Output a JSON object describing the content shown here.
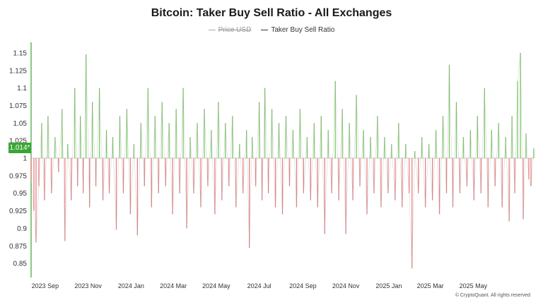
{
  "title": "Bitcoin: Taker Buy Sell Ratio - All Exchanges",
  "legend": [
    {
      "label": "Price USD",
      "hidden": true
    },
    {
      "label": "Taker Buy Sell Ratio",
      "hidden": false
    }
  ],
  "credit": "© CryptoQuant. All rights reserved",
  "current_value_label": "1.014*",
  "colors": {
    "above": "#6cc253",
    "below": "#e57373",
    "accent": "#3aa635",
    "baseline": "#cccccc"
  },
  "chart_data": {
    "type": "area",
    "title": "Bitcoin: Taker Buy Sell Ratio - All Exchanges",
    "baseline": 1.0,
    "ylim": [
      0.83,
      1.165
    ],
    "yticks": [
      1.15,
      1.125,
      1.1,
      1.075,
      1.05,
      1.025,
      1,
      0.975,
      0.95,
      0.925,
      0.9,
      0.875,
      0.85
    ],
    "ytick_labels": [
      "1.15",
      "1.125",
      "1.1",
      "1.075",
      "1.05",
      "1.025",
      "1",
      "0.975",
      "0.95",
      "0.925",
      "0.9",
      "0.875",
      "0.85"
    ],
    "x_range": [
      "2023-08-12",
      "2025-07-26"
    ],
    "xticks": [
      {
        "label": "2023 Sep",
        "date": "2023-09-01"
      },
      {
        "label": "2023 Nov",
        "date": "2023-11-01"
      },
      {
        "label": "2024 Jan",
        "date": "2024-01-01"
      },
      {
        "label": "2024 Mar",
        "date": "2024-03-01"
      },
      {
        "label": "2024 May",
        "date": "2024-05-01"
      },
      {
        "label": "2024 Jul",
        "date": "2024-07-01"
      },
      {
        "label": "2024 Sep",
        "date": "2024-09-01"
      },
      {
        "label": "2024 Nov",
        "date": "2024-11-01"
      },
      {
        "label": "2025 Jan",
        "date": "2025-01-01"
      },
      {
        "label": "2025 Mar",
        "date": "2025-03-01"
      },
      {
        "label": "2025 May",
        "date": "2025-05-01"
      }
    ],
    "series": [
      {
        "name": "Taker Buy Sell Ratio",
        "points": [
          [
            "2023-08-12",
            0.97
          ],
          [
            "2023-08-16",
            0.925
          ],
          [
            "2023-08-19",
            0.88
          ],
          [
            "2023-08-23",
            0.96
          ],
          [
            "2023-08-27",
            1.05
          ],
          [
            "2023-08-31",
            0.94
          ],
          [
            "2023-09-05",
            1.06
          ],
          [
            "2023-09-10",
            0.95
          ],
          [
            "2023-09-15",
            1.03
          ],
          [
            "2023-09-20",
            0.98
          ],
          [
            "2023-09-25",
            1.07
          ],
          [
            "2023-09-29",
            0.882
          ],
          [
            "2023-10-03",
            1.02
          ],
          [
            "2023-10-08",
            0.94
          ],
          [
            "2023-10-13",
            1.1
          ],
          [
            "2023-10-17",
            0.96
          ],
          [
            "2023-10-21",
            1.06
          ],
          [
            "2023-10-25",
            0.95
          ],
          [
            "2023-10-29",
            1.148
          ],
          [
            "2023-11-03",
            0.93
          ],
          [
            "2023-11-07",
            1.08
          ],
          [
            "2023-11-12",
            0.96
          ],
          [
            "2023-11-17",
            1.1
          ],
          [
            "2023-11-22",
            0.94
          ],
          [
            "2023-11-27",
            1.04
          ],
          [
            "2023-12-01",
            0.95
          ],
          [
            "2023-12-06",
            1.03
          ],
          [
            "2023-12-11",
            0.898
          ],
          [
            "2023-12-16",
            1.06
          ],
          [
            "2023-12-21",
            0.95
          ],
          [
            "2023-12-26",
            1.07
          ],
          [
            "2023-12-31",
            0.92
          ],
          [
            "2024-01-05",
            1.02
          ],
          [
            "2024-01-10",
            0.89
          ],
          [
            "2024-01-15",
            1.05
          ],
          [
            "2024-01-20",
            0.96
          ],
          [
            "2024-01-25",
            1.1
          ],
          [
            "2024-01-30",
            0.93
          ],
          [
            "2024-02-04",
            1.06
          ],
          [
            "2024-02-09",
            0.95
          ],
          [
            "2024-02-14",
            1.08
          ],
          [
            "2024-02-19",
            0.96
          ],
          [
            "2024-02-24",
            1.05
          ],
          [
            "2024-02-29",
            0.92
          ],
          [
            "2024-03-05",
            1.07
          ],
          [
            "2024-03-10",
            0.95
          ],
          [
            "2024-03-15",
            1.1
          ],
          [
            "2024-03-20",
            0.9
          ],
          [
            "2024-03-25",
            1.03
          ],
          [
            "2024-03-30",
            0.95
          ],
          [
            "2024-04-04",
            1.05
          ],
          [
            "2024-04-09",
            0.93
          ],
          [
            "2024-04-14",
            1.07
          ],
          [
            "2024-04-19",
            0.96
          ],
          [
            "2024-04-24",
            1.04
          ],
          [
            "2024-04-29",
            0.92
          ],
          [
            "2024-05-04",
            1.08
          ],
          [
            "2024-05-09",
            0.94
          ],
          [
            "2024-05-14",
            1.05
          ],
          [
            "2024-05-19",
            0.96
          ],
          [
            "2024-05-24",
            1.06
          ],
          [
            "2024-05-29",
            0.93
          ],
          [
            "2024-06-03",
            1.02
          ],
          [
            "2024-06-08",
            0.95
          ],
          [
            "2024-06-13",
            1.04
          ],
          [
            "2024-06-17",
            0.872
          ],
          [
            "2024-06-21",
            1.03
          ],
          [
            "2024-06-26",
            0.96
          ],
          [
            "2024-07-01",
            1.08
          ],
          [
            "2024-07-05",
            0.94
          ],
          [
            "2024-07-09",
            1.1
          ],
          [
            "2024-07-14",
            0.95
          ],
          [
            "2024-07-19",
            1.07
          ],
          [
            "2024-07-24",
            0.93
          ],
          [
            "2024-07-29",
            1.05
          ],
          [
            "2024-08-03",
            0.92
          ],
          [
            "2024-08-08",
            1.06
          ],
          [
            "2024-08-13",
            0.96
          ],
          [
            "2024-08-18",
            1.04
          ],
          [
            "2024-08-23",
            0.93
          ],
          [
            "2024-08-28",
            1.07
          ],
          [
            "2024-09-02",
            0.95
          ],
          [
            "2024-09-07",
            1.03
          ],
          [
            "2024-09-12",
            0.94
          ],
          [
            "2024-09-17",
            1.05
          ],
          [
            "2024-09-22",
            0.93
          ],
          [
            "2024-09-27",
            1.06
          ],
          [
            "2024-10-02",
            0.892
          ],
          [
            "2024-10-07",
            1.04
          ],
          [
            "2024-10-12",
            0.95
          ],
          [
            "2024-10-17",
            1.11
          ],
          [
            "2024-10-22",
            0.94
          ],
          [
            "2024-10-27",
            1.07
          ],
          [
            "2024-11-01",
            0.892
          ],
          [
            "2024-11-06",
            1.05
          ],
          [
            "2024-11-11",
            0.94
          ],
          [
            "2024-11-16",
            1.09
          ],
          [
            "2024-11-21",
            0.96
          ],
          [
            "2024-11-26",
            1.04
          ],
          [
            "2024-12-01",
            0.92
          ],
          [
            "2024-12-06",
            1.03
          ],
          [
            "2024-12-11",
            0.95
          ],
          [
            "2024-12-16",
            1.06
          ],
          [
            "2024-12-21",
            0.93
          ],
          [
            "2024-12-26",
            1.03
          ],
          [
            "2024-12-31",
            0.95
          ],
          [
            "2025-01-05",
            1.02
          ],
          [
            "2025-01-10",
            0.94
          ],
          [
            "2025-01-15",
            1.05
          ],
          [
            "2025-01-20",
            0.93
          ],
          [
            "2025-01-25",
            1.02
          ],
          [
            "2025-01-30",
            0.95
          ],
          [
            "2025-02-03",
            0.843
          ],
          [
            "2025-02-07",
            1.01
          ],
          [
            "2025-02-12",
            0.95
          ],
          [
            "2025-02-17",
            1.03
          ],
          [
            "2025-02-22",
            0.93
          ],
          [
            "2025-02-27",
            1.02
          ],
          [
            "2025-03-04",
            0.94
          ],
          [
            "2025-03-09",
            1.04
          ],
          [
            "2025-03-14",
            0.92
          ],
          [
            "2025-03-19",
            1.06
          ],
          [
            "2025-03-24",
            0.95
          ],
          [
            "2025-03-28",
            1.133
          ],
          [
            "2025-04-02",
            0.93
          ],
          [
            "2025-04-07",
            1.08
          ],
          [
            "2025-04-12",
            0.95
          ],
          [
            "2025-04-17",
            1.03
          ],
          [
            "2025-04-22",
            0.96
          ],
          [
            "2025-04-27",
            1.04
          ],
          [
            "2025-05-02",
            0.94
          ],
          [
            "2025-05-07",
            1.06
          ],
          [
            "2025-05-12",
            0.95
          ],
          [
            "2025-05-17",
            1.1
          ],
          [
            "2025-05-22",
            0.93
          ],
          [
            "2025-05-27",
            1.04
          ],
          [
            "2025-06-01",
            0.96
          ],
          [
            "2025-06-06",
            1.05
          ],
          [
            "2025-06-11",
            0.93
          ],
          [
            "2025-06-16",
            1.03
          ],
          [
            "2025-06-21",
            0.91
          ],
          [
            "2025-06-25",
            1.06
          ],
          [
            "2025-06-29",
            0.95
          ],
          [
            "2025-07-03",
            1.11
          ],
          [
            "2025-07-07",
            1.15
          ],
          [
            "2025-07-11",
            0.913
          ],
          [
            "2025-07-15",
            1.035
          ],
          [
            "2025-07-19",
            0.97
          ],
          [
            "2025-07-22",
            0.96
          ],
          [
            "2025-07-26",
            1.014
          ]
        ]
      }
    ],
    "legend_position": "top-center",
    "grid": false
  }
}
